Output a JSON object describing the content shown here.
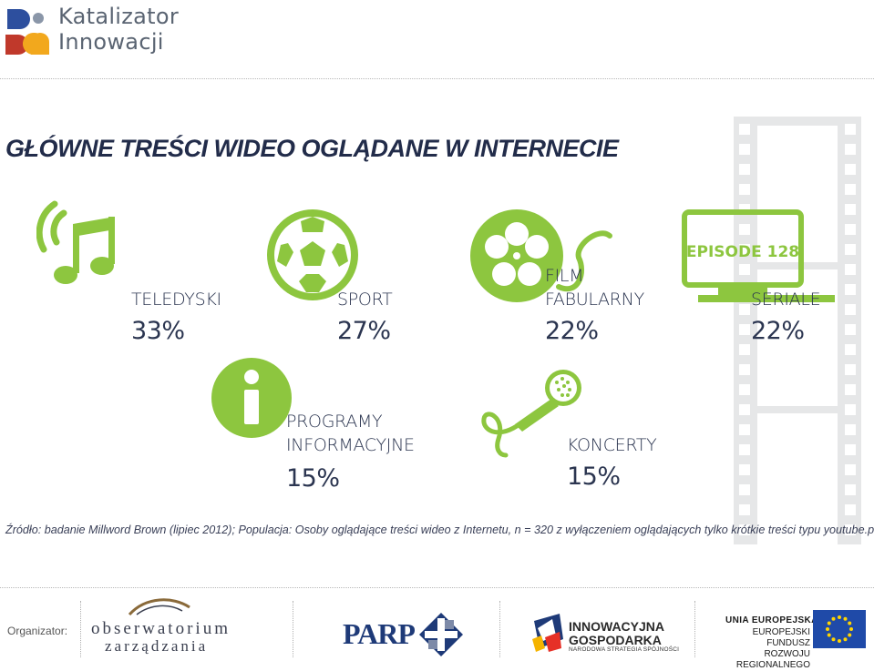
{
  "header": {
    "logo_line1": "Katalizator",
    "logo_line2": "Innowacji"
  },
  "title": "GŁÓWNE TREŚCI WIDEO OGLĄDANE W INTERNECIE",
  "categories": [
    {
      "label_line1": "TELEDYSKI",
      "label_line2": "",
      "value": "33%",
      "icon": "music-note-icon"
    },
    {
      "label_line1": "SPORT",
      "label_line2": "",
      "value": "27%",
      "icon": "soccer-ball-icon"
    },
    {
      "label_line1": "FILM",
      "label_line2": "FABULARNY",
      "value": "22%",
      "icon": "film-reel-icon"
    },
    {
      "label_line1": "SERIALE",
      "label_line2": "",
      "value": "22%",
      "icon": "tv-icon",
      "icon_text": "EPISODE 128"
    },
    {
      "label_line1": "PROGRAMY",
      "label_line2": "INFORMACYJNE",
      "value": "15%",
      "icon": "info-icon"
    },
    {
      "label_line1": "KONCERTY",
      "label_line2": "",
      "value": "15%",
      "icon": "microphone-icon"
    }
  ],
  "source": "Źródło: badanie Millword Brown (lipiec 2012); Populacja: Osoby oglądające treści wideo z Internetu, n = 320 z wyłączeniem oglądających tylko krótkie treści typu youtube.pl",
  "footer": {
    "organizer_label": "Organizator:",
    "obserwatorium_line1": "obserwatorium",
    "obserwatorium_line2": "zarządzania",
    "parp": "PARP",
    "ig_line1": "INNOWACYJNA",
    "ig_line2": "GOSPODARKA",
    "ig_line3": "NARODOWA STRATEGIA SPÓJNOŚCI",
    "ue_line1": "UNIA EUROPEJSKA",
    "ue_line2": "EUROPEJSKI FUNDUSZ",
    "ue_line3": "ROZWOJU REGIONALNEGO"
  },
  "colors": {
    "accent_green": "#8dc63f",
    "text_navy": "#2b3550",
    "film_grey": "#e6e7e8",
    "eu_blue": "#1f4aa8",
    "eu_star": "#ffd400"
  }
}
